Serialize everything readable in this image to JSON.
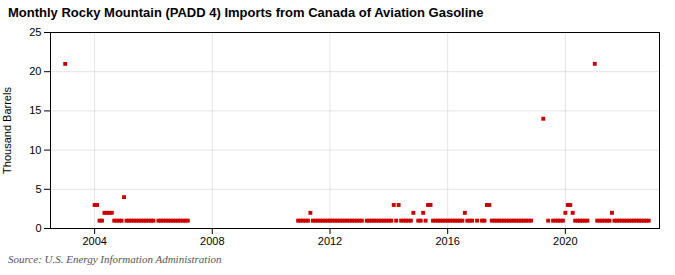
{
  "chart_data": {
    "type": "scatter",
    "title": "Monthly Rocky Mountain (PADD 4) Imports from Canada of Aviation Gasoline",
    "ylabel": "Thousand Barrels",
    "source": "Source: U.S. Energy Information Administration",
    "color": "#cc0000",
    "marker": "square",
    "grid": true,
    "xlim": [
      2002.5,
      2023.2
    ],
    "xticks": [
      2004,
      2008,
      2012,
      2016,
      2020
    ],
    "ylim": [
      0,
      25
    ],
    "yticks": [
      0,
      5,
      10,
      15,
      20,
      25
    ],
    "x": [
      2003.0,
      2004.0,
      2004.083,
      2004.167,
      2004.25,
      2004.333,
      2004.417,
      2004.5,
      2004.583,
      2004.667,
      2004.75,
      2004.833,
      2004.917,
      2005.0,
      2005.083,
      2005.167,
      2005.25,
      2005.333,
      2005.417,
      2005.5,
      2005.583,
      2005.667,
      2005.75,
      2005.833,
      2005.917,
      2006.0,
      2006.167,
      2006.25,
      2006.333,
      2006.417,
      2006.5,
      2006.583,
      2006.667,
      2006.75,
      2006.833,
      2006.917,
      2007.0,
      2007.083,
      2007.167,
      2010.917,
      2011.0,
      2011.083,
      2011.167,
      2011.25,
      2011.333,
      2011.417,
      2011.5,
      2011.583,
      2011.667,
      2011.75,
      2011.833,
      2011.917,
      2012.0,
      2012.083,
      2012.167,
      2012.25,
      2012.333,
      2012.417,
      2012.5,
      2012.583,
      2012.667,
      2012.75,
      2012.833,
      2012.917,
      2013.0,
      2013.083,
      2013.25,
      2013.333,
      2013.417,
      2013.5,
      2013.583,
      2013.667,
      2013.75,
      2013.833,
      2013.917,
      2014.0,
      2014.083,
      2014.167,
      2014.25,
      2014.333,
      2014.417,
      2014.5,
      2014.583,
      2014.667,
      2014.75,
      2014.833,
      2015.0,
      2015.083,
      2015.167,
      2015.25,
      2015.333,
      2015.417,
      2015.5,
      2015.583,
      2015.667,
      2015.75,
      2015.833,
      2015.917,
      2016.0,
      2016.083,
      2016.167,
      2016.25,
      2016.333,
      2016.417,
      2016.5,
      2016.583,
      2016.667,
      2016.75,
      2016.833,
      2017.0,
      2017.167,
      2017.25,
      2017.333,
      2017.417,
      2017.5,
      2017.583,
      2017.667,
      2017.75,
      2017.833,
      2017.917,
      2018.0,
      2018.083,
      2018.167,
      2018.25,
      2018.333,
      2018.417,
      2018.5,
      2018.583,
      2018.667,
      2018.75,
      2018.833,
      2019.25,
      2019.417,
      2019.583,
      2019.667,
      2019.75,
      2019.833,
      2019.917,
      2020.0,
      2020.083,
      2020.167,
      2020.25,
      2020.333,
      2020.417,
      2020.5,
      2020.583,
      2020.667,
      2020.75,
      2021.0,
      2021.083,
      2021.167,
      2021.25,
      2021.333,
      2021.417,
      2021.5,
      2021.583,
      2021.667,
      2021.75,
      2021.833,
      2021.917,
      2022.0,
      2022.083,
      2022.167,
      2022.25,
      2022.333,
      2022.417,
      2022.5,
      2022.583,
      2022.667,
      2022.75,
      2022.833
    ],
    "values": [
      21.0,
      3.0,
      3.0,
      1.0,
      1.0,
      2.0,
      2.0,
      2.0,
      2.0,
      1.0,
      1.0,
      1.0,
      1.0,
      4.0,
      1.0,
      1.0,
      1.0,
      1.0,
      1.0,
      1.0,
      1.0,
      1.0,
      1.0,
      1.0,
      1.0,
      1.0,
      1.0,
      1.0,
      1.0,
      1.0,
      1.0,
      1.0,
      1.0,
      1.0,
      1.0,
      1.0,
      1.0,
      1.0,
      1.0,
      1.0,
      1.0,
      1.0,
      1.0,
      1.0,
      2.0,
      1.0,
      1.0,
      1.0,
      1.0,
      1.0,
      1.0,
      1.0,
      1.0,
      1.0,
      1.0,
      1.0,
      1.0,
      1.0,
      1.0,
      1.0,
      1.0,
      1.0,
      1.0,
      1.0,
      1.0,
      1.0,
      1.0,
      1.0,
      1.0,
      1.0,
      1.0,
      1.0,
      1.0,
      1.0,
      1.0,
      1.0,
      1.0,
      3.0,
      1.0,
      3.0,
      1.0,
      1.0,
      1.0,
      1.0,
      1.0,
      2.0,
      1.0,
      1.0,
      2.0,
      1.0,
      3.0,
      3.0,
      1.0,
      1.0,
      1.0,
      1.0,
      1.0,
      1.0,
      1.0,
      1.0,
      1.0,
      1.0,
      1.0,
      1.0,
      1.0,
      2.0,
      1.0,
      1.0,
      1.0,
      1.0,
      1.0,
      1.0,
      3.0,
      3.0,
      1.0,
      1.0,
      1.0,
      1.0,
      1.0,
      1.0,
      1.0,
      1.0,
      1.0,
      1.0,
      1.0,
      1.0,
      1.0,
      1.0,
      1.0,
      1.0,
      1.0,
      14.0,
      1.0,
      1.0,
      1.0,
      1.0,
      1.0,
      1.0,
      2.0,
      3.0,
      3.0,
      2.0,
      1.0,
      1.0,
      1.0,
      1.0,
      1.0,
      1.0,
      21.0,
      1.0,
      1.0,
      1.0,
      1.0,
      1.0,
      1.0,
      2.0,
      1.0,
      1.0,
      1.0,
      1.0,
      1.0,
      1.0,
      1.0,
      1.0,
      1.0,
      1.0,
      1.0,
      1.0,
      1.0,
      1.0,
      1.0
    ]
  }
}
